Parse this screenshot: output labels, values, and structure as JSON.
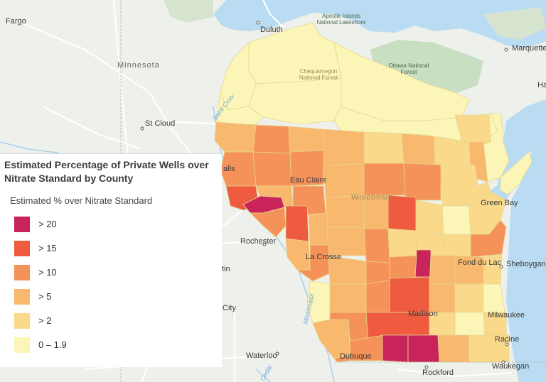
{
  "legend": {
    "title": "Estimated Percentage of Private Wells over Nitrate Standard by County",
    "subtitle": "Estimated % over Nitrate Standard",
    "classes": [
      {
        "label": "> 20",
        "color": "#c8245a"
      },
      {
        "label": "> 15",
        "color": "#ee5b3f"
      },
      {
        "label": "> 10",
        "color": "#f5925a"
      },
      {
        "label": "> 5",
        "color": "#f8b86e"
      },
      {
        "label": "> 2",
        "color": "#fad98a"
      },
      {
        "label": "0 – 1.9",
        "color": "#fbf6b8"
      }
    ]
  },
  "colors": {
    "land": "#eef0ec",
    "water": "#b9dcf2",
    "forest": "#c8dfc2",
    "roads": "#ffffff"
  },
  "places": {
    "fargo": "Fargo",
    "duluth": "Duluth",
    "apostle": "Apostle Islands National Lakeshore",
    "minnesota": "Minnesota",
    "ottawa": "Ottawa National Forest",
    "marquette": "Marquette",
    "chequamegon": "Chequamegon National Forest",
    "st_croix": "Saint Croix",
    "st_cloud": "St Cloud",
    "eau_claire": "Eau Claire",
    "wisconsin": "Wisconsin",
    "green_bay": "Green Bay",
    "rochester": "Rochester",
    "la_crosse": "La Crosse",
    "fond_du_lac": "Fond du Lac",
    "sheboygan": "Sheboygan",
    "madison": "Madison",
    "milwaukee": "Milwaukee",
    "racine": "Racine",
    "mississippi": "Mississippi",
    "dubuque": "Dubuque",
    "waterloo": "Waterloo",
    "rockford": "Rockford",
    "waukegan": "Waukegan",
    "cedar": "Cedar",
    "minnesota_river": "Minnesota",
    "falls": "alls",
    "tin": "tin",
    "city": "City",
    "ha": "Ha"
  }
}
